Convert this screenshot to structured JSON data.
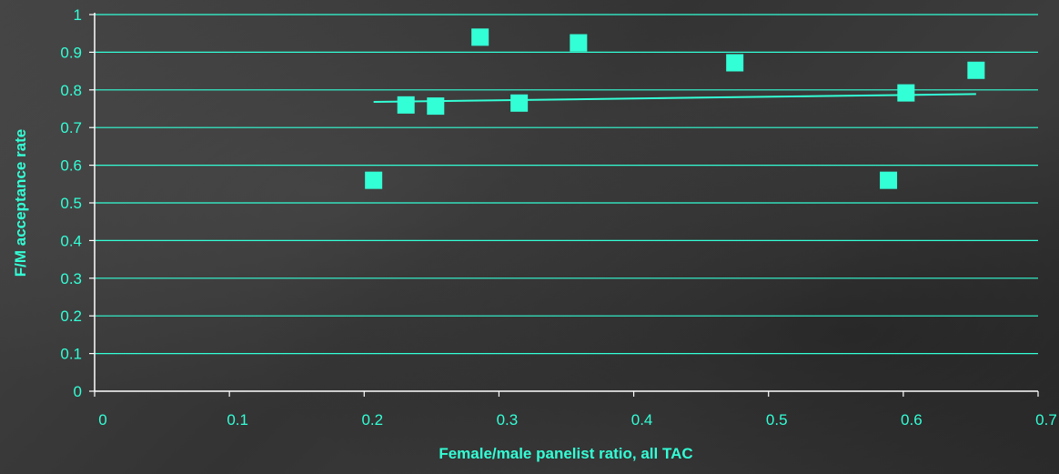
{
  "chart_data": {
    "type": "scatter",
    "title": "",
    "xlabel": "Female/male panelist ratio, all TAC",
    "ylabel": "F/M acceptance rate",
    "xlim": [
      0,
      0.7
    ],
    "ylim": [
      0,
      1
    ],
    "x_ticks": [
      "0",
      "0.1",
      "0.2",
      "0.3",
      "0.4",
      "0.5",
      "0.6",
      "0.7"
    ],
    "y_ticks": [
      "0",
      "0.1",
      "0.2",
      "0.3",
      "0.4",
      "0.5",
      "0.6",
      "0.7",
      "0.8",
      "0.9",
      "1"
    ],
    "grid": "horizontal",
    "marker": "square",
    "points": [
      {
        "x": 0.207,
        "y": 0.56
      },
      {
        "x": 0.231,
        "y": 0.76
      },
      {
        "x": 0.253,
        "y": 0.757
      },
      {
        "x": 0.286,
        "y": 0.94
      },
      {
        "x": 0.315,
        "y": 0.765
      },
      {
        "x": 0.359,
        "y": 0.925
      },
      {
        "x": 0.475,
        "y": 0.872
      },
      {
        "x": 0.589,
        "y": 0.56
      },
      {
        "x": 0.602,
        "y": 0.792
      },
      {
        "x": 0.654,
        "y": 0.852
      }
    ],
    "trendline": {
      "type": "linear",
      "x": [
        0.207,
        0.654
      ],
      "y": [
        0.768,
        0.789
      ]
    },
    "colors": {
      "accent": "#33ffd6",
      "grid": "#33ffd6",
      "text": "#33ffd6",
      "axis": "#ffffff"
    }
  }
}
